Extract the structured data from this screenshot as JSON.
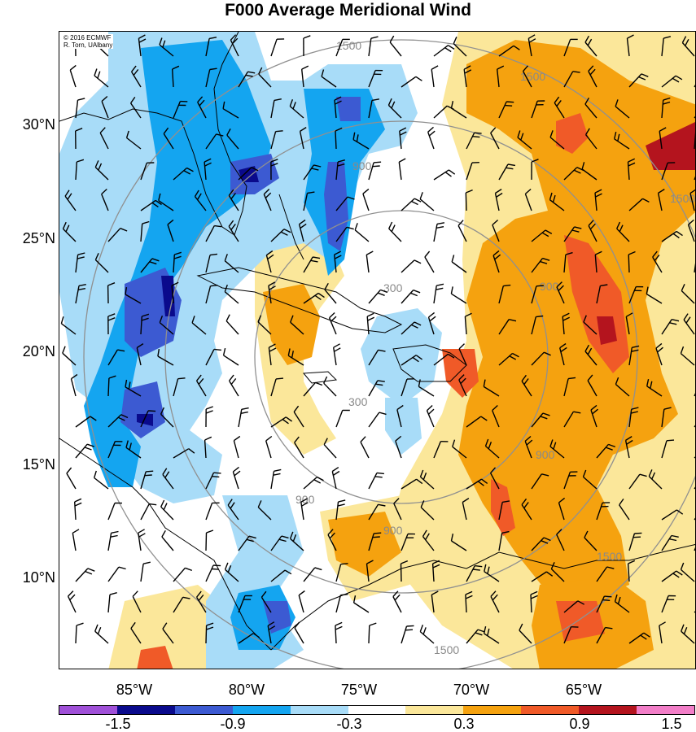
{
  "title": "F000 Average Meridional Wind",
  "credit": {
    "line1": "© 2016 ECMWF",
    "line2": "R. Torn, UAlbany"
  },
  "latitude_labels": [
    "30°N",
    "25°N",
    "20°N",
    "15°N",
    "10°N"
  ],
  "longitude_labels": [
    "85°W",
    "80°W",
    "75°W",
    "70°W",
    "65°W"
  ],
  "range_ring_labels": [
    "300",
    "300",
    "900",
    "900",
    "900",
    "900",
    "900",
    "1500",
    "1500",
    "1500",
    "1500",
    "1500"
  ],
  "colorbar": {
    "labels": [
      "-1.5",
      "-0.9",
      "-0.3",
      "0.3",
      "0.9",
      "1.5"
    ],
    "colors": [
      "#a050d8",
      "#0a0a8c",
      "#3c5ad2",
      "#14a5f0",
      "#a8dcf8",
      "#ffffff",
      "#fbe79a",
      "#f5a20f",
      "#f05a28",
      "#b4141e",
      "#f27ec8"
    ]
  },
  "palette": {
    "negative_light": "#a8dcf8",
    "negative_medium": "#14a5f0",
    "negative_strong": "#3c5ad2",
    "negative_max": "#0a0a8c",
    "positive_light": "#fbe79a",
    "positive_medium": "#f5a20f",
    "positive_strong": "#f05a28",
    "positive_max": "#b4141e",
    "ring": "#909090"
  }
}
